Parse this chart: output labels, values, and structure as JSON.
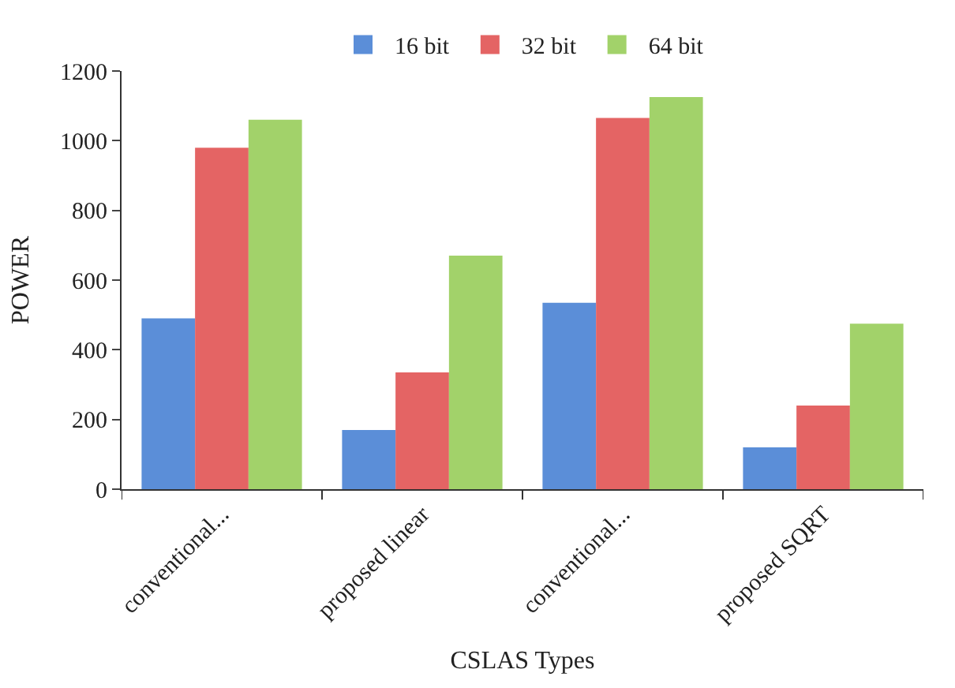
{
  "chart_data": {
    "type": "bar",
    "xlabel": "CSLAS Types",
    "ylabel": "POWER",
    "categories": [
      "conventional...",
      "proposed linear",
      "conventional...",
      "proposed SQRT"
    ],
    "series": [
      {
        "name": "16 bit",
        "color": "#5b8ed8",
        "values": [
          490,
          170,
          535,
          120
        ]
      },
      {
        "name": "32 bit",
        "color": "#e46464",
        "values": [
          980,
          335,
          1065,
          240
        ]
      },
      {
        "name": "64 bit",
        "color": "#a2d26a",
        "values": [
          1060,
          670,
          1125,
          475
        ]
      }
    ],
    "ylim": [
      0,
      1200
    ],
    "yticks": [
      0,
      200,
      400,
      600,
      800,
      1000,
      1200
    ],
    "legend": "top"
  }
}
